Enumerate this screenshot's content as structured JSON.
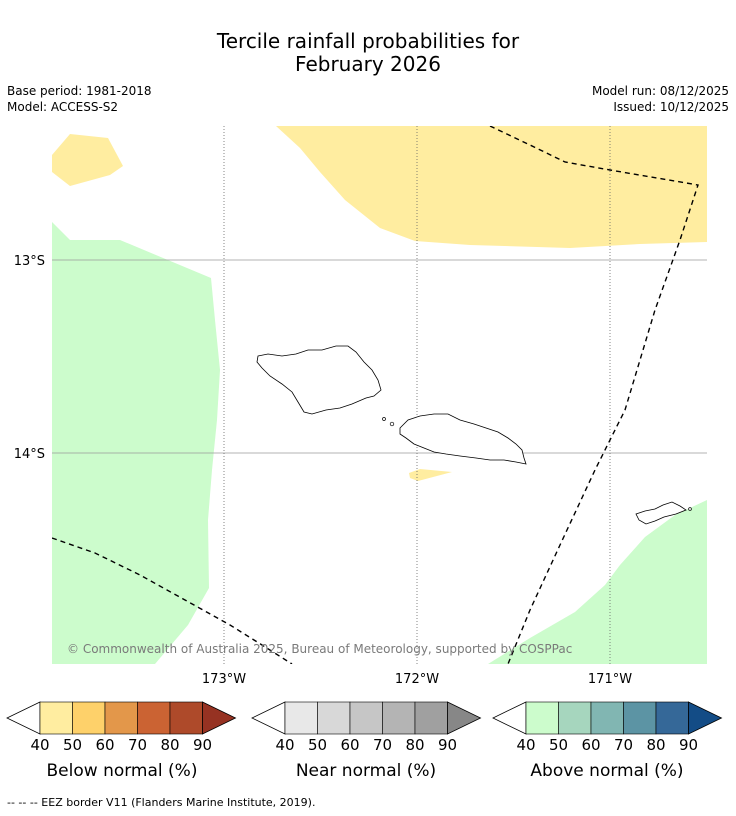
{
  "title": {
    "line1": "Tercile rainfall probabilities for",
    "line2": "February 2026"
  },
  "info": {
    "base_period": "Base period: 1981-2018",
    "model": "Model: ACCESS-S2",
    "model_run": "Model run: 08/12/2025",
    "issued": "Issued: 10/12/2025"
  },
  "map": {
    "lat_labels": [
      "13°S",
      "14°S"
    ],
    "lon_labels": [
      "173°W",
      "172°W",
      "171°W"
    ],
    "credit": "© Commonwealth of Australia 2025, Bureau of Meteorology, supported by COSPPac",
    "fill_colors": {
      "below": "#ffeda0",
      "above": "#ccfccc"
    }
  },
  "colorbars": [
    {
      "name": "below",
      "label": "Below normal (%)",
      "ticks": [
        "40",
        "50",
        "60",
        "70",
        "80",
        "90"
      ],
      "colors": [
        "#ffeda0",
        "#fed16a",
        "#e3974a",
        "#cb6333",
        "#ae4a2a",
        "#963222"
      ]
    },
    {
      "name": "near",
      "label": "Near normal (%)",
      "ticks": [
        "40",
        "50",
        "60",
        "70",
        "80",
        "90"
      ],
      "colors": [
        "#e8e8e8",
        "#d8d8d8",
        "#c6c6c6",
        "#b4b4b4",
        "#a0a0a0",
        "#878787"
      ]
    },
    {
      "name": "above",
      "label": "Above normal (%)",
      "ticks": [
        "40",
        "50",
        "60",
        "70",
        "80",
        "90"
      ],
      "colors": [
        "#ccfccc",
        "#a6d6be",
        "#81b6b2",
        "#5c94a4",
        "#356898",
        "#134c86"
      ]
    }
  ],
  "footer": {
    "legend": "--  --  -- EEZ border V11 (Flanders Marine Institute, 2019)."
  }
}
